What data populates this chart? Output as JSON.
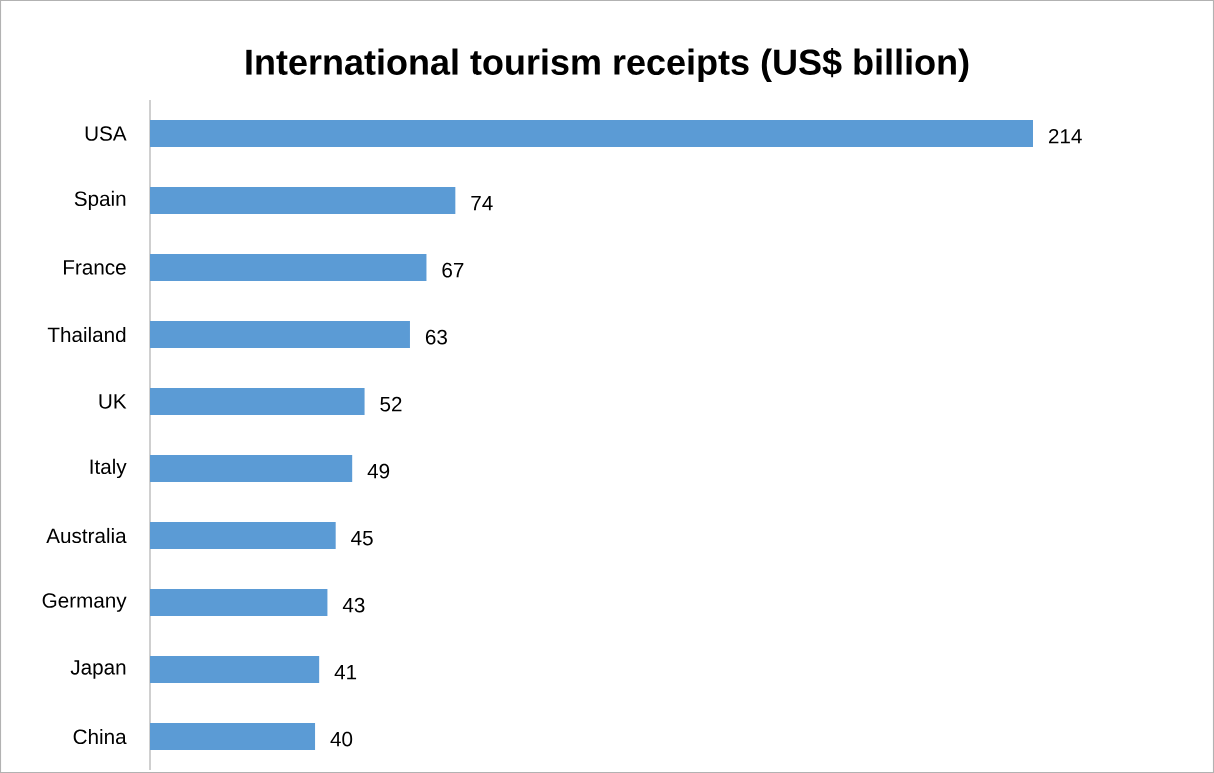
{
  "chart_data": {
    "type": "bar",
    "orientation": "horizontal",
    "title": "International tourism receipts (US$ billion)",
    "categories": [
      "USA",
      "Spain",
      "France",
      "Thailand",
      "UK",
      "Italy",
      "Australia",
      "Germany",
      "Japan",
      "China"
    ],
    "values": [
      214,
      74,
      67,
      63,
      52,
      49,
      45,
      43,
      41,
      40
    ],
    "color": "#5b9bd5",
    "data_labels": true
  }
}
